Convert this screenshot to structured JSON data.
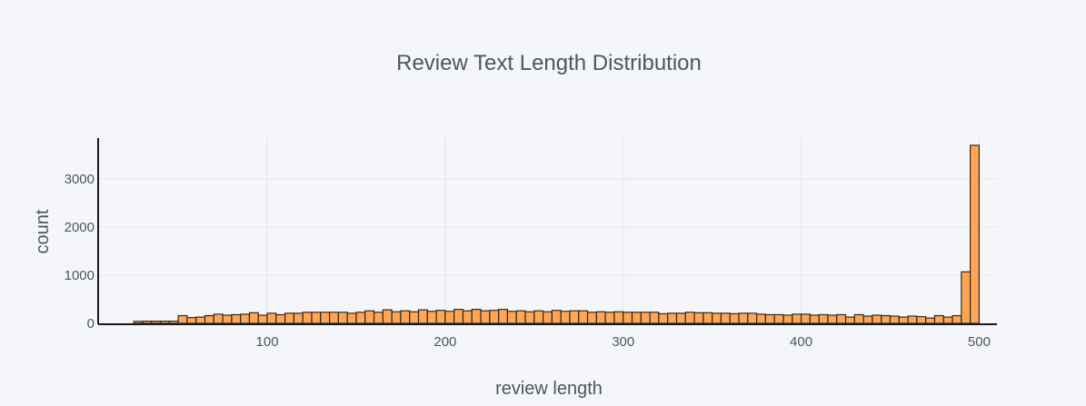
{
  "colors": {
    "background": "#f5f6f9",
    "bar_fill": "#ffa554",
    "bar_stroke": "#2b2b2b",
    "grid": "#e1e5ed",
    "text": "#4d5663",
    "axis_line": "#1a1a1a"
  },
  "chart_data": {
    "type": "bar",
    "title": "Review Text Length Distribution",
    "xlabel": "review length",
    "ylabel": "count",
    "xlim": [
      5,
      510
    ],
    "ylim": [
      0,
      3850
    ],
    "x_ticks": [
      100,
      200,
      300,
      400,
      500
    ],
    "y_ticks": [
      0,
      1000,
      2000,
      3000
    ],
    "grid": true,
    "legend": "none",
    "bin_width": 5,
    "bin_start": 5,
    "values": [
      0,
      0,
      0,
      0,
      40,
      45,
      45,
      45,
      45,
      160,
      120,
      130,
      160,
      190,
      170,
      180,
      190,
      220,
      170,
      210,
      180,
      210,
      210,
      230,
      230,
      230,
      230,
      230,
      210,
      230,
      260,
      230,
      280,
      240,
      260,
      240,
      280,
      250,
      270,
      250,
      290,
      260,
      290,
      260,
      270,
      290,
      250,
      260,
      240,
      260,
      240,
      270,
      250,
      260,
      260,
      230,
      240,
      230,
      240,
      230,
      230,
      230,
      230,
      200,
      210,
      210,
      230,
      220,
      220,
      210,
      210,
      200,
      210,
      210,
      190,
      180,
      180,
      170,
      190,
      190,
      170,
      180,
      170,
      180,
      130,
      180,
      150,
      170,
      160,
      150,
      130,
      150,
      140,
      110,
      160,
      130,
      160,
      1070,
      3700
    ]
  }
}
